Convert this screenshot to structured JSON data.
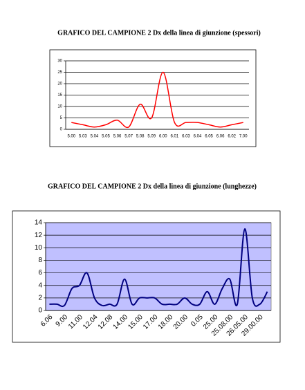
{
  "chart_data": [
    {
      "type": "line",
      "title": "GRAFICO DEL CAMPIONE 2 Dx della linea di giunzione (spessori)",
      "categories": [
        "5.00",
        "5.03",
        "5.04",
        "5.05",
        "5.06",
        "5.07",
        "5.08",
        "5.09",
        "6.00",
        "6.01",
        "6.03",
        "6.04",
        "6.05",
        "6.06",
        "6.02",
        "7.00"
      ],
      "values": [
        3,
        2,
        1,
        2,
        4,
        1,
        11,
        5,
        25,
        3,
        3,
        3,
        2,
        1,
        2,
        3
      ],
      "color": "#ff0000",
      "ylim": [
        0,
        30
      ],
      "yticks": [
        0,
        5,
        10,
        15,
        20,
        25,
        30
      ],
      "grid": true
    },
    {
      "type": "line",
      "title": "GRAFICO DEL CAMPIONE 2 Dx della linea di giunzione (lunghezze)",
      "categories": [
        "6.06",
        null,
        "9.00",
        null,
        "11.00",
        null,
        "12.04",
        null,
        "12.08",
        null,
        "14.00",
        null,
        "15.00",
        null,
        "17.00",
        null,
        "18.00",
        null,
        "20.00",
        null,
        "0.05",
        null,
        "25.00",
        null,
        "25.08.00",
        null,
        "26.05.00",
        null,
        "29.00.00",
        null
      ],
      "values": [
        1,
        1,
        0.8,
        3.5,
        4,
        6,
        2,
        0.8,
        1,
        1,
        5,
        1,
        2,
        2,
        2,
        1,
        1,
        1,
        2,
        1,
        1,
        3,
        1,
        3.5,
        5,
        1,
        13,
        2,
        1,
        3
      ],
      "color": "#000080",
      "background": "#c0c0ff",
      "ylim": [
        0,
        14
      ],
      "yticks": [
        0,
        2,
        4,
        6,
        8,
        10,
        12,
        14
      ],
      "grid": true
    }
  ]
}
